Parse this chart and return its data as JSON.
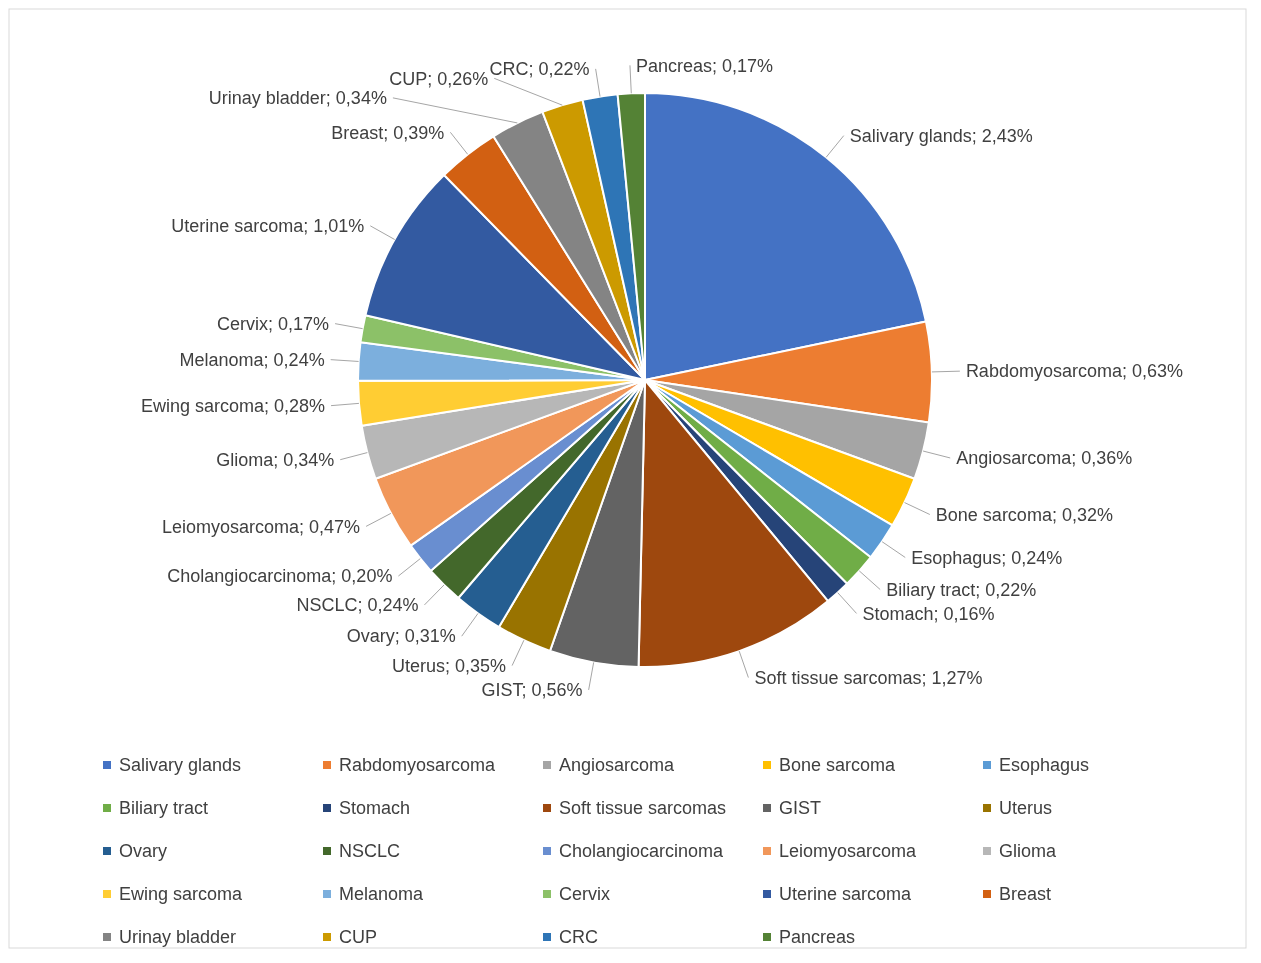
{
  "chart_data": {
    "type": "pie",
    "categories": [
      "Salivary glands",
      "Rabdomyosarcoma",
      "Angiosarcoma",
      "Bone sarcoma",
      "Esophagus",
      "Biliary tract",
      "Stomach",
      "Soft tissue sarcomas",
      "GIST",
      "Uterus",
      "Ovary",
      "NSCLC",
      "Cholangiocarcinoma",
      "Leiomyosarcoma",
      "Glioma",
      "Ewing sarcoma",
      "Melanoma",
      "Cervix",
      "Uterine sarcoma",
      "Breast",
      "Urinay bladder",
      "CUP",
      "CRC",
      "Pancreas"
    ],
    "values": [
      2.43,
      0.63,
      0.36,
      0.32,
      0.24,
      0.22,
      0.16,
      1.27,
      0.56,
      0.35,
      0.31,
      0.24,
      0.2,
      0.47,
      0.34,
      0.28,
      0.24,
      0.17,
      1.01,
      0.39,
      0.34,
      0.26,
      0.22,
      0.17
    ],
    "value_labels": [
      "Salivary glands; 2,43%",
      "Rabdomyosarcoma; 0,63%",
      "Angiosarcoma; 0,36%",
      "Bone sarcoma; 0,32%",
      "Esophagus; 0,24%",
      "Biliary tract; 0,22%",
      "Stomach; 0,16%",
      "Soft tissue sarcomas; 1,27%",
      "GIST; 0,56%",
      "Uterus; 0,35%",
      "Ovary; 0,31%",
      "NSCLC; 0,24%",
      "Cholangiocarcinoma; 0,20%",
      "Leiomyosarcoma; 0,47%",
      "Glioma; 0,34%",
      "Ewing sarcoma; 0,28%",
      "Melanoma; 0,24%",
      "Cervix; 0,17%",
      "Uterine sarcoma; 1,01%",
      "Breast; 0,39%",
      "Urinay bladder; 0,34%",
      "CUP; 0,26%",
      "CRC; 0,22%",
      "Pancreas; 0,17%"
    ],
    "colors": [
      "#4472c4",
      "#ed7d31",
      "#a5a5a5",
      "#ffc000",
      "#5b9bd5",
      "#70ad47",
      "#264478",
      "#9e480e",
      "#636363",
      "#997300",
      "#255e91",
      "#43682b",
      "#698ed0",
      "#f1975a",
      "#b7b7b7",
      "#ffcd33",
      "#7cafdd",
      "#8cc168",
      "#335aa1",
      "#d26012",
      "#848484",
      "#cc9a00",
      "#2e75b6",
      "#548235"
    ],
    "legend": "bottom"
  }
}
